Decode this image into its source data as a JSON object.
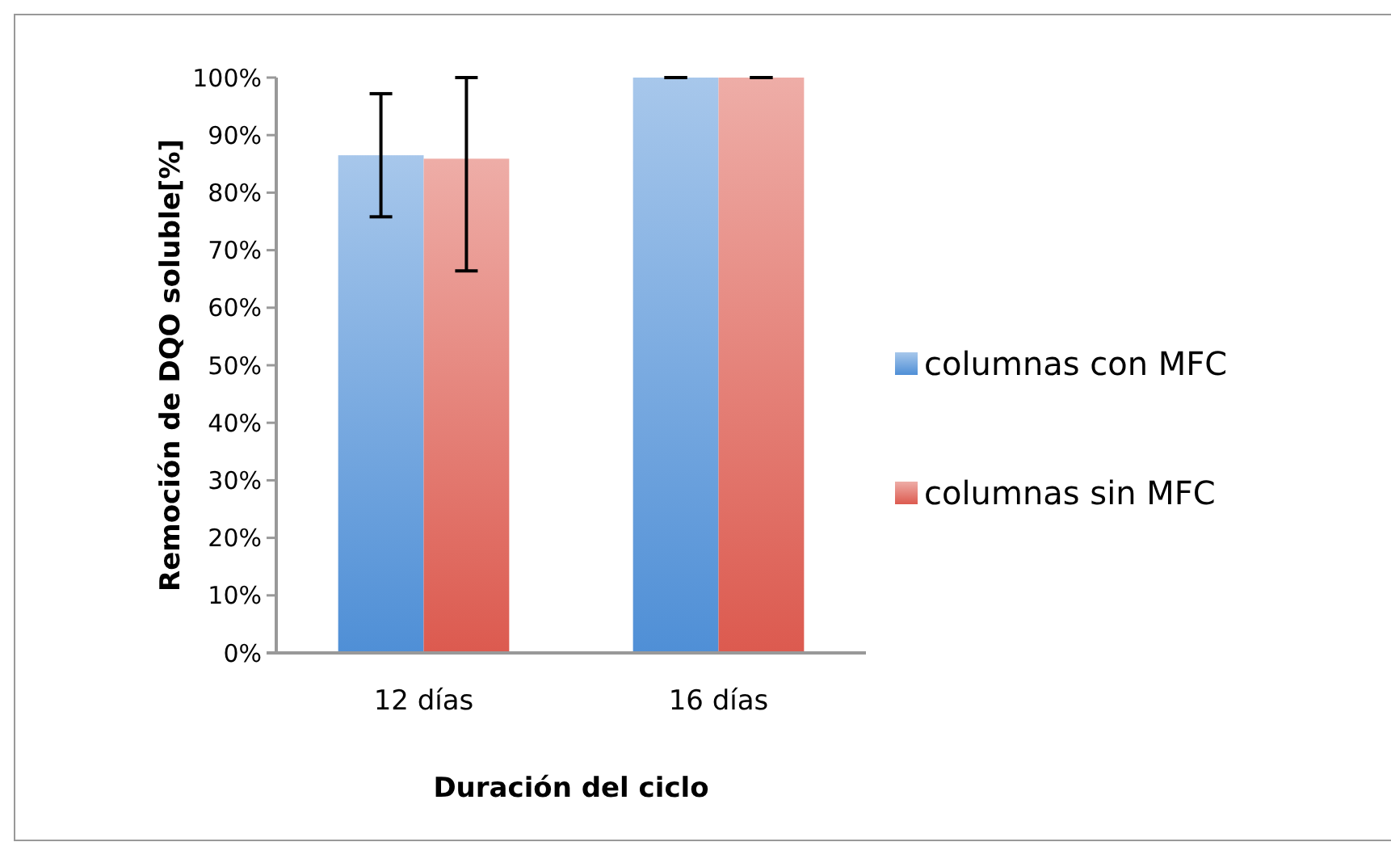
{
  "chart_data": {
    "type": "bar",
    "xlabel": "Duración del ciclo",
    "ylabel": "Remoción de DQO soluble[%]",
    "categories": [
      "12 días",
      "16 días"
    ],
    "series": [
      {
        "name": "columnas con MFC",
        "color": "#4f8fd6",
        "values": [
          86.5,
          100
        ],
        "errors": [
          10.7,
          0
        ]
      },
      {
        "name": "columnas sin MFC",
        "color": "#dc5a4f",
        "values": [
          85.9,
          100
        ],
        "errors": [
          [
            66.4,
            100
          ],
          0
        ]
      }
    ],
    "ylim": [
      0,
      100
    ],
    "yticks": [
      {
        "value": 0,
        "label": "0%"
      },
      {
        "value": 10,
        "label": "10%"
      },
      {
        "value": 20,
        "label": "20%"
      },
      {
        "value": 30,
        "label": "30%"
      },
      {
        "value": 40,
        "label": "40%"
      },
      {
        "value": 50,
        "label": "50%"
      },
      {
        "value": 60,
        "label": "60%"
      },
      {
        "value": 70,
        "label": "70%"
      },
      {
        "value": 80,
        "label": "80%"
      },
      {
        "value": 90,
        "label": "90%"
      },
      {
        "value": 100,
        "label": "100%"
      }
    ],
    "grid": false,
    "legend": "right"
  }
}
